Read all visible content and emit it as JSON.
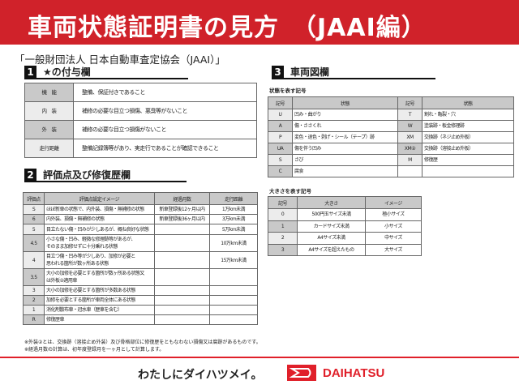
{
  "header": {
    "title": "車両状態証明書の見方　（JAAI編）",
    "bg_color": "#d0222a"
  },
  "organization": "「一般財団法人 日本自動車査定協会（JAAI）」",
  "section1": {
    "number": "1",
    "title": "★の付与欄",
    "rows": [
      [
        "機　能",
        "整備、保証付きであること"
      ],
      [
        "内　装",
        "補修の必要な目立つ損傷、悪臭等がないこと"
      ],
      [
        "外　装",
        "補修の必要な目立つ損傷がないこと"
      ],
      [
        "走行距離",
        "整備記録簿等があり、実走行であることが確認できること"
      ]
    ]
  },
  "section2": {
    "number": "2",
    "title": "評価点及び修復歴欄",
    "headers": [
      "評価点",
      "評価点設定イメージ",
      "経過月数",
      "走行距離"
    ],
    "rows": [
      [
        "S",
        "ほぼ新車の状態で、内外装、損傷・無補修の状態",
        "新車登録後12ヶ月以内",
        "1万km未満"
      ],
      [
        "6",
        "内外装、損傷・無補修の状態",
        "新車登録後36ヶ月以内",
        "3万km未満"
      ],
      [
        "5",
        "目立たない傷・凹みが少しあるが、概ね良好な状態",
        "",
        "5万km未満"
      ],
      [
        "4.5",
        "小さな傷・凹み、軽微な修理跡等があるが、\nそのまま加修せずに十分乗れる状態",
        "",
        "10万km未満"
      ],
      [
        "4",
        "目立つ傷・凹み等が少しあり、加修が必要と\n思われる箇所が数ヶ所ある状態",
        "",
        "15万km未満"
      ],
      [
        "3.5",
        "大小の加修を必要とする箇所が数ヶ所ある状態又\nは外板②適用車",
        "",
        ""
      ],
      [
        "3",
        "大小の加修を必要とする箇所が多数ある状態",
        "",
        ""
      ],
      [
        "2",
        "加修を必要とする箇所が車両全体にある状態",
        "",
        ""
      ],
      [
        "1",
        "消化剤散布車・冠水車（歴車を含む）",
        "",
        ""
      ],
      [
        "R",
        "修復歴車",
        "",
        ""
      ]
    ],
    "notes": [
      "※外装②とは、交換跡（溶接止め外装）及び骨格部位に修復歴をともなわない損傷又は腐跡があるものです。",
      "※経過月数の計算は、初年度登録月を一ヶ月として計算します。"
    ]
  },
  "section3": {
    "number": "3",
    "title": "車両図欄",
    "state_caption": "状態を表す記号",
    "state_headers": [
      "記号",
      "状態",
      "記号",
      "状態"
    ],
    "state_rows": [
      [
        "U",
        "凹み・曲がり",
        "T",
        "割れ・亀裂・穴"
      ],
      [
        "A",
        "傷・ささくれ",
        "W",
        "塗装跡・板金修理跡"
      ],
      [
        "P",
        "変色・退色・剥げ・シール（テープ）跡",
        "XM",
        "交換跡（ネジ止め外板）"
      ],
      [
        "UA",
        "傷を伴う凹み",
        "XM②",
        "交換跡（溶接止め外板）"
      ],
      [
        "S",
        "さび",
        "M",
        "修復歴"
      ],
      [
        "C",
        "腐食",
        "",
        ""
      ]
    ],
    "size_caption": "大きさを表す記号",
    "size_headers": [
      "記号",
      "大きさ",
      "イメージ"
    ],
    "size_rows": [
      [
        "0",
        "500円玉サイズ未満",
        "極小サイズ"
      ],
      [
        "1",
        "カードサイズ未満",
        "小サイズ"
      ],
      [
        "2",
        "A4サイズ未満",
        "中サイズ"
      ],
      [
        "3",
        "A4サイズを超えたもの",
        "大サイズ"
      ]
    ]
  },
  "footer": {
    "slogan": "わたしにダイハツメイ。",
    "brand": "DAIHATSU",
    "brand_color": "#e0202a",
    "logo_icon": "daihatsu-d-logo"
  }
}
